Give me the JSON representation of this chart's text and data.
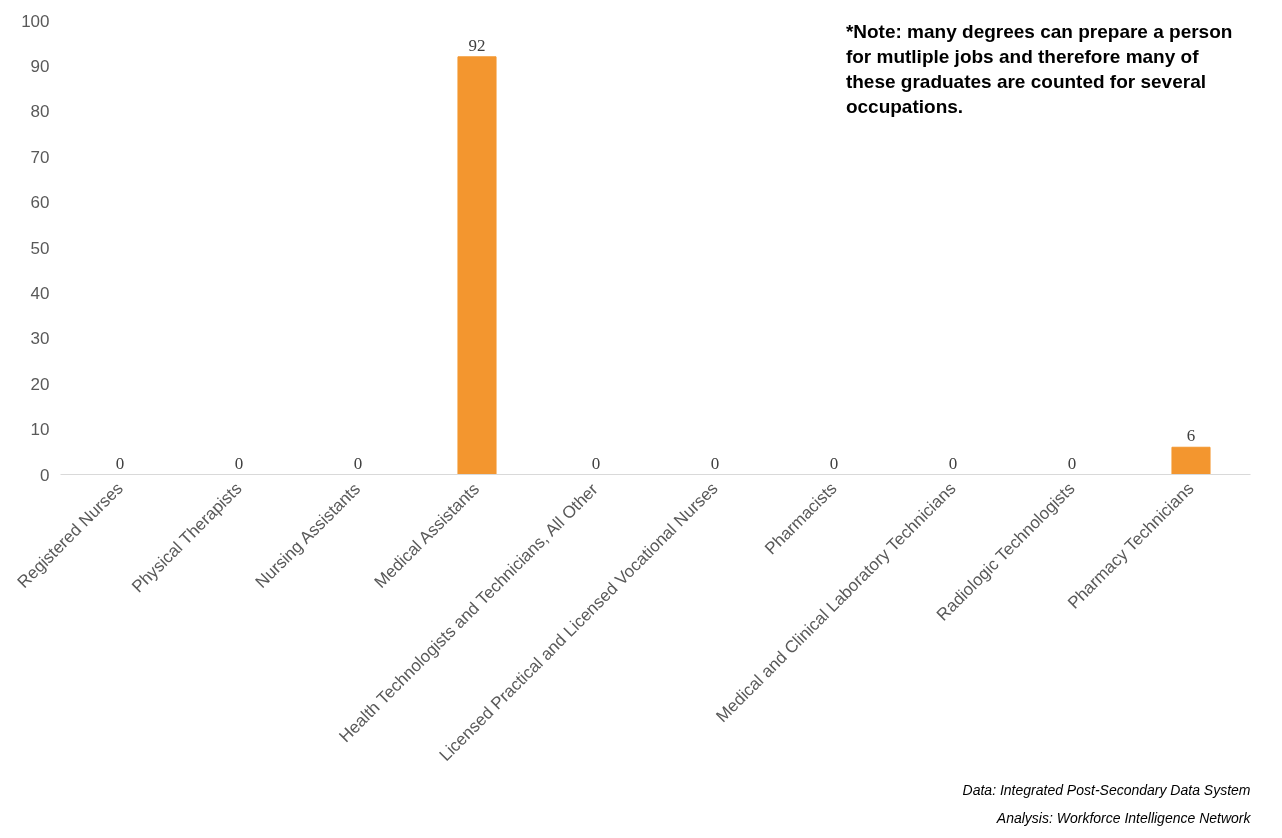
{
  "chart_data": {
    "type": "bar",
    "categories": [
      "Registered Nurses",
      "Physical Therapists",
      "Nursing Assistants",
      "Medical Assistants",
      "Health Technologists and Technicians, All Other",
      "Licensed Practical and Licensed Vocational Nurses",
      "Pharmacists",
      "Medical and Clinical Laboratory Technicians",
      "Radiologic Technologists",
      "Pharmacy Technicians"
    ],
    "values": [
      0,
      0,
      0,
      92,
      0,
      0,
      0,
      0,
      0,
      6
    ],
    "color": "#f3962f",
    "ylim": [
      0,
      100
    ],
    "yticks": [
      0,
      10,
      20,
      30,
      40,
      50,
      60,
      70,
      80,
      90,
      100
    ],
    "data_labels": true,
    "grid": false,
    "annotations": [
      "*Note: many degrees can prepare a person for mutliple jobs and therefore many of these graduates are counted for several occupations.",
      "Data: Integrated Post-Secondary Data System",
      "Analysis: Workforce Intelligence Network"
    ]
  }
}
